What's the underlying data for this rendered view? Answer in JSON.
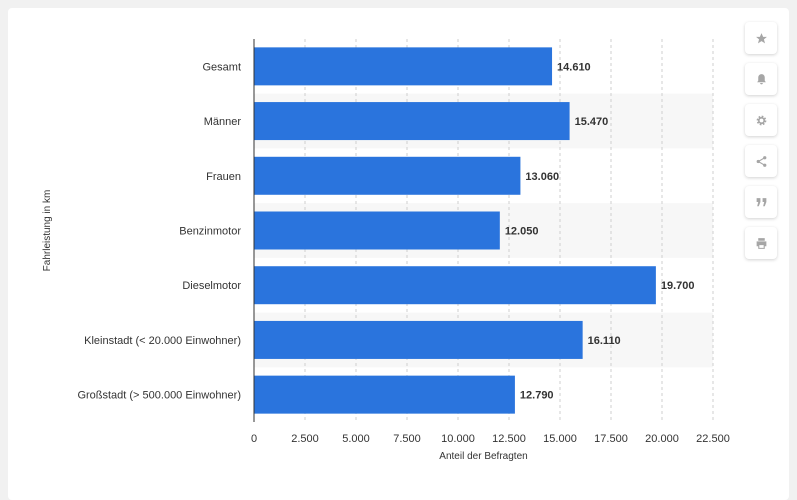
{
  "toolbar": {
    "buttons": [
      {
        "name": "favorite-button",
        "icon": "star-icon"
      },
      {
        "name": "notification-button",
        "icon": "bell-icon"
      },
      {
        "name": "settings-button",
        "icon": "gear-icon"
      },
      {
        "name": "share-button",
        "icon": "share-icon"
      },
      {
        "name": "cite-button",
        "icon": "quote-icon"
      },
      {
        "name": "print-button",
        "icon": "print-icon"
      }
    ]
  },
  "colors": {
    "bar": "#2a74dd",
    "grid": "#cfcfcf",
    "band": "#f7f7f7",
    "background": "#f1f1f1",
    "card": "#ffffff",
    "icon": "#a6a6a6"
  },
  "chart_data": {
    "type": "bar",
    "orientation": "horizontal",
    "title": "",
    "xlabel": "Anteil der Befragten",
    "ylabel": "Fahrleistung in km",
    "categories": [
      "Gesamt",
      "Männer",
      "Frauen",
      "Benzinmotor",
      "Dieselmotor",
      "Kleinstadt (< 20.000 Einwohner)",
      "Großstadt (> 500.000 Einwohner)"
    ],
    "values": [
      14610,
      15470,
      13060,
      12050,
      19700,
      16110,
      12790
    ],
    "value_labels": [
      "14.610",
      "15.470",
      "13.060",
      "12.050",
      "19.700",
      "16.110",
      "12.790"
    ],
    "xlim": [
      0,
      22500
    ],
    "xticks": [
      0,
      2500,
      5000,
      7500,
      10000,
      12500,
      15000,
      17500,
      20000,
      22500
    ],
    "xtick_labels": [
      "0",
      "2.500",
      "5.000",
      "7.500",
      "10.000",
      "12.500",
      "15.000",
      "17.500",
      "20.000",
      "22.500"
    ],
    "grid": "vertical-dashed"
  }
}
